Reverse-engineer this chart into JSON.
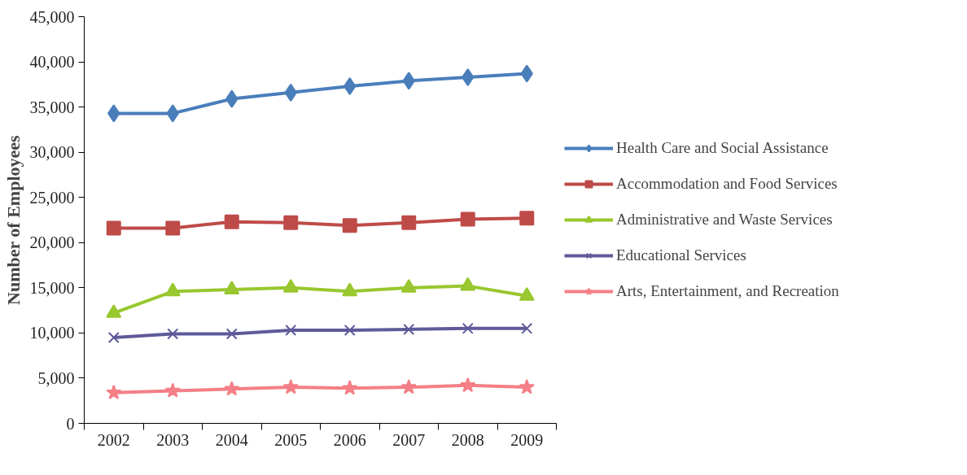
{
  "chart_data": {
    "type": "line",
    "ylabel": "Number of Employees",
    "categories": [
      "2002",
      "2003",
      "2004",
      "2005",
      "2006",
      "2007",
      "2008",
      "2009"
    ],
    "series": [
      {
        "name": "Health Care and Social Assistance",
        "color": "#4a7ebb",
        "marker": "diamond",
        "values": [
          34300,
          34300,
          35900,
          36600,
          37300,
          37900,
          38300,
          38700
        ]
      },
      {
        "name": "Accommodation and Food Services",
        "color": "#be4b48",
        "marker": "square",
        "values": [
          21600,
          21600,
          22300,
          22200,
          21900,
          22200,
          22600,
          22700
        ]
      },
      {
        "name": "Administrative and Waste Services",
        "color": "#98c72f",
        "marker": "triangle",
        "values": [
          12200,
          14600,
          14800,
          15000,
          14600,
          15000,
          15200,
          14100
        ]
      },
      {
        "name": "Educational Services",
        "color": "#5f5a99",
        "marker": "cross",
        "values": [
          9500,
          9900,
          9900,
          10300,
          10300,
          10400,
          10500,
          10500
        ]
      },
      {
        "name": "Arts, Entertainment, and Recreation",
        "color": "#f47f86",
        "marker": "star",
        "values": [
          3400,
          3600,
          3800,
          4000,
          3900,
          4000,
          4200,
          4000
        ]
      }
    ],
    "ylim": [
      0,
      45000
    ],
    "yticks": [
      {
        "value": 0,
        "label": "0"
      },
      {
        "value": 5000,
        "label": "5,000"
      },
      {
        "value": 10000,
        "label": "10,000"
      },
      {
        "value": 15000,
        "label": "15,000"
      },
      {
        "value": 20000,
        "label": "20,000"
      },
      {
        "value": 25000,
        "label": "25,000"
      },
      {
        "value": 30000,
        "label": "30,000"
      },
      {
        "value": 35000,
        "label": "35,000"
      },
      {
        "value": 40000,
        "label": "40,000"
      },
      {
        "value": 45000,
        "label": "45,000"
      }
    ],
    "grid": false,
    "legend": "right",
    "line_style": "solid"
  }
}
